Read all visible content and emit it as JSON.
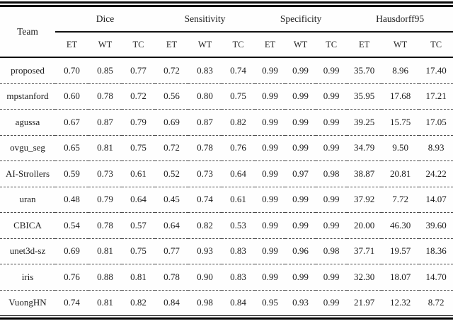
{
  "chart_data": {
    "type": "table",
    "header": {
      "team": "Team",
      "groups": [
        {
          "label": "Dice",
          "sub": [
            "ET",
            "WT",
            "TC"
          ]
        },
        {
          "label": "Sensitivity",
          "sub": [
            "ET",
            "WT",
            "TC"
          ]
        },
        {
          "label": "Specificity",
          "sub": [
            "ET",
            "WT",
            "TC"
          ]
        },
        {
          "label": "Hausdorff95",
          "sub": [
            "ET",
            "WT",
            "TC"
          ]
        }
      ]
    },
    "rows": [
      {
        "team": "proposed",
        "values": [
          "0.70",
          "0.85",
          "0.77",
          "0.72",
          "0.83",
          "0.74",
          "0.99",
          "0.99",
          "0.99",
          "35.70",
          "8.96",
          "17.40"
        ]
      },
      {
        "team": "mpstanford",
        "values": [
          "0.60",
          "0.78",
          "0.72",
          "0.56",
          "0.80",
          "0.75",
          "0.99",
          "0.99",
          "0.99",
          "35.95",
          "17.68",
          "17.21"
        ]
      },
      {
        "team": "agussa",
        "values": [
          "0.67",
          "0.87",
          "0.79",
          "0.69",
          "0.87",
          "0.82",
          "0.99",
          "0.99",
          "0.99",
          "39.25",
          "15.75",
          "17.05"
        ]
      },
      {
        "team": "ovgu_seg",
        "values": [
          "0.65",
          "0.81",
          "0.75",
          "0.72",
          "0.78",
          "0.76",
          "0.99",
          "0.99",
          "0.99",
          "34.79",
          "9.50",
          "8.93"
        ]
      },
      {
        "team": "AI-Strollers",
        "values": [
          "0.59",
          "0.73",
          "0.61",
          "0.52",
          "0.73",
          "0.64",
          "0.99",
          "0.97",
          "0.98",
          "38.87",
          "20.81",
          "24.22"
        ]
      },
      {
        "team": "uran",
        "values": [
          "0.48",
          "0.79",
          "0.64",
          "0.45",
          "0.74",
          "0.61",
          "0.99",
          "0.99",
          "0.99",
          "37.92",
          "7.72",
          "14.07"
        ]
      },
      {
        "team": "CBICA",
        "values": [
          "0.54",
          "0.78",
          "0.57",
          "0.64",
          "0.82",
          "0.53",
          "0.99",
          "0.99",
          "0.99",
          "20.00",
          "46.30",
          "39.60"
        ]
      },
      {
        "team": "unet3d-sz",
        "values": [
          "0.69",
          "0.81",
          "0.75",
          "0.77",
          "0.93",
          "0.83",
          "0.99",
          "0.96",
          "0.98",
          "37.71",
          "19.57",
          "18.36"
        ]
      },
      {
        "team": "iris",
        "values": [
          "0.76",
          "0.88",
          "0.81",
          "0.78",
          "0.90",
          "0.83",
          "0.99",
          "0.99",
          "0.99",
          "32.30",
          "18.07",
          "14.70"
        ]
      },
      {
        "team": "VuongHN",
        "values": [
          "0.74",
          "0.81",
          "0.82",
          "0.84",
          "0.98",
          "0.84",
          "0.95",
          "0.93",
          "0.99",
          "21.97",
          "12.32",
          "8.72"
        ]
      }
    ],
    "style": {
      "text_color": "#1c1c1c",
      "rule_color": "#0a0a0a",
      "row_separator": "dashed"
    }
  }
}
